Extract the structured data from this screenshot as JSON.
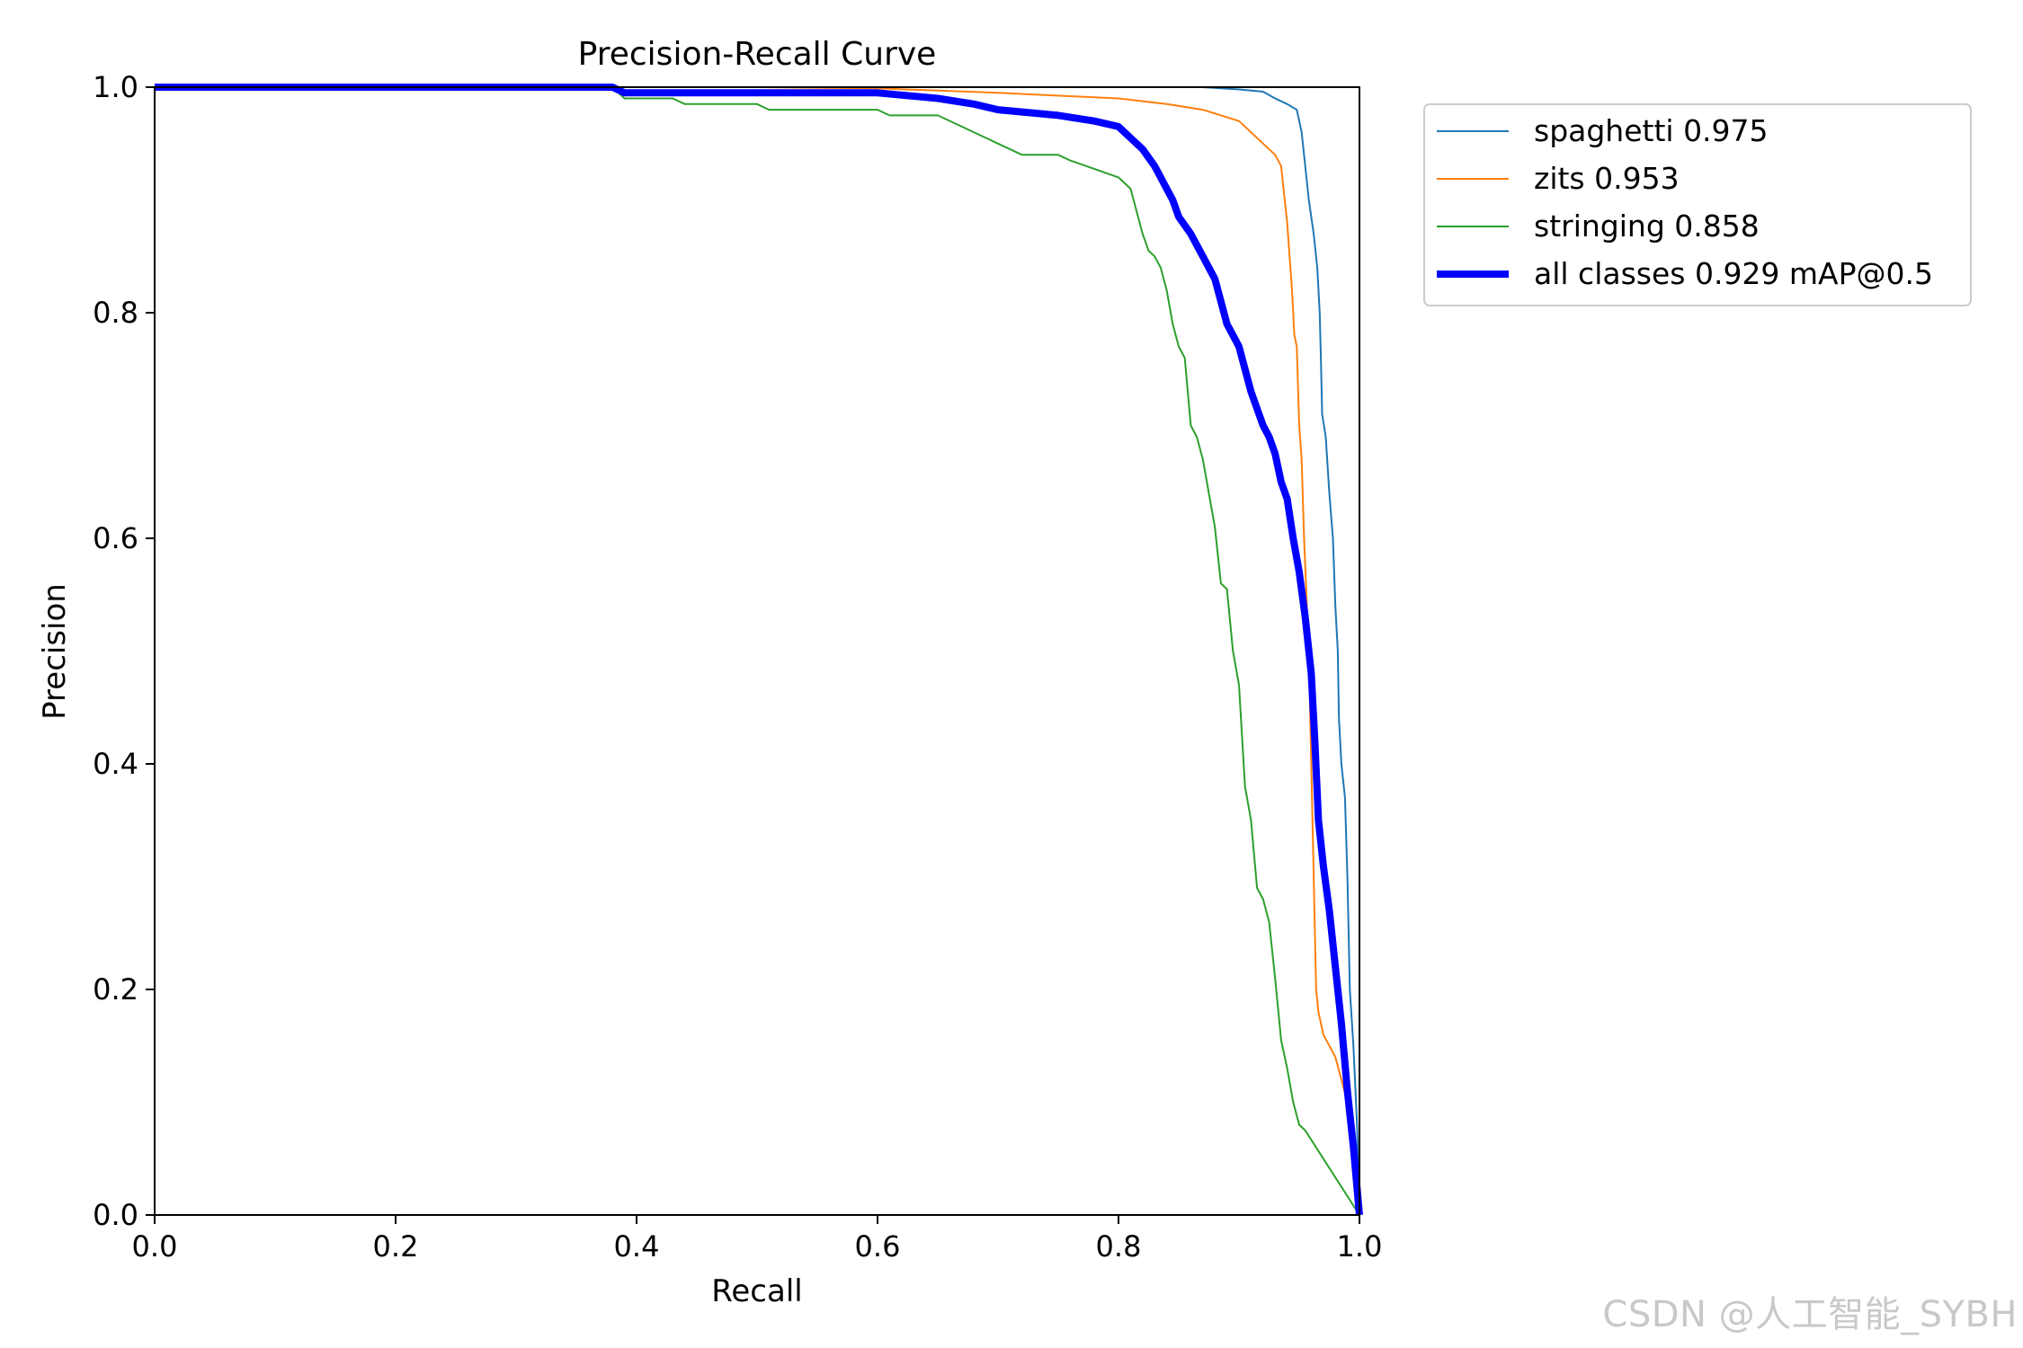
{
  "chart_data": {
    "type": "line",
    "title": "Precision-Recall Curve",
    "xlabel": "Recall",
    "ylabel": "Precision",
    "xlim": [
      0,
      1
    ],
    "ylim": [
      0,
      1
    ],
    "xticks": [
      "0.0",
      "0.2",
      "0.4",
      "0.6",
      "0.8",
      "1.0"
    ],
    "yticks": [
      "0.0",
      "0.2",
      "0.4",
      "0.6",
      "0.8",
      "1.0"
    ],
    "grid": false,
    "legend_position": "outside-top-right",
    "series": [
      {
        "name": "spaghetti 0.975",
        "color": "#1f77b4",
        "points": [
          [
            0,
            1
          ],
          [
            0.6,
            1
          ],
          [
            0.87,
            1
          ],
          [
            0.9,
            0.998
          ],
          [
            0.92,
            0.996
          ],
          [
            0.93,
            0.99
          ],
          [
            0.94,
            0.985
          ],
          [
            0.948,
            0.98
          ],
          [
            0.952,
            0.96
          ],
          [
            0.955,
            0.93
          ],
          [
            0.958,
            0.9
          ],
          [
            0.962,
            0.87
          ],
          [
            0.965,
            0.84
          ],
          [
            0.967,
            0.8
          ],
          [
            0.968,
            0.76
          ],
          [
            0.969,
            0.71
          ],
          [
            0.972,
            0.69
          ],
          [
            0.975,
            0.64
          ],
          [
            0.978,
            0.6
          ],
          [
            0.98,
            0.54
          ],
          [
            0.982,
            0.5
          ],
          [
            0.983,
            0.44
          ],
          [
            0.985,
            0.4
          ],
          [
            0.988,
            0.37
          ],
          [
            0.99,
            0.3
          ],
          [
            0.992,
            0.2
          ],
          [
            0.995,
            0.15
          ],
          [
            0.998,
            0.08
          ],
          [
            1,
            0
          ]
        ]
      },
      {
        "name": "zits 0.953",
        "color": "#ff7f0e",
        "points": [
          [
            0,
            1
          ],
          [
            0.5,
            1
          ],
          [
            0.6,
            0.999
          ],
          [
            0.7,
            0.995
          ],
          [
            0.8,
            0.99
          ],
          [
            0.84,
            0.985
          ],
          [
            0.87,
            0.98
          ],
          [
            0.9,
            0.97
          ],
          [
            0.91,
            0.96
          ],
          [
            0.92,
            0.95
          ],
          [
            0.93,
            0.94
          ],
          [
            0.935,
            0.93
          ],
          [
            0.938,
            0.9
          ],
          [
            0.94,
            0.88
          ],
          [
            0.942,
            0.85
          ],
          [
            0.944,
            0.82
          ],
          [
            0.946,
            0.78
          ],
          [
            0.948,
            0.77
          ],
          [
            0.95,
            0.7
          ],
          [
            0.952,
            0.67
          ],
          [
            0.954,
            0.6
          ],
          [
            0.956,
            0.55
          ],
          [
            0.958,
            0.5
          ],
          [
            0.96,
            0.4
          ],
          [
            0.962,
            0.3
          ],
          [
            0.964,
            0.2
          ],
          [
            0.966,
            0.18
          ],
          [
            0.97,
            0.16
          ],
          [
            0.98,
            0.14
          ],
          [
            0.99,
            0.1
          ],
          [
            1,
            0
          ]
        ]
      },
      {
        "name": "stringing 0.858",
        "color": "#2ca02c",
        "points": [
          [
            0,
            1
          ],
          [
            0.38,
            1
          ],
          [
            0.39,
            0.99
          ],
          [
            0.43,
            0.99
          ],
          [
            0.44,
            0.985
          ],
          [
            0.5,
            0.985
          ],
          [
            0.51,
            0.98
          ],
          [
            0.6,
            0.98
          ],
          [
            0.61,
            0.975
          ],
          [
            0.65,
            0.975
          ],
          [
            0.67,
            0.965
          ],
          [
            0.69,
            0.955
          ],
          [
            0.7,
            0.95
          ],
          [
            0.72,
            0.94
          ],
          [
            0.75,
            0.94
          ],
          [
            0.76,
            0.935
          ],
          [
            0.8,
            0.92
          ],
          [
            0.81,
            0.91
          ],
          [
            0.815,
            0.89
          ],
          [
            0.82,
            0.87
          ],
          [
            0.825,
            0.855
          ],
          [
            0.83,
            0.85
          ],
          [
            0.835,
            0.84
          ],
          [
            0.84,
            0.82
          ],
          [
            0.845,
            0.79
          ],
          [
            0.85,
            0.77
          ],
          [
            0.855,
            0.76
          ],
          [
            0.86,
            0.7
          ],
          [
            0.865,
            0.69
          ],
          [
            0.87,
            0.67
          ],
          [
            0.875,
            0.64
          ],
          [
            0.88,
            0.61
          ],
          [
            0.885,
            0.56
          ],
          [
            0.89,
            0.555
          ],
          [
            0.895,
            0.5
          ],
          [
            0.9,
            0.47
          ],
          [
            0.905,
            0.38
          ],
          [
            0.91,
            0.35
          ],
          [
            0.915,
            0.29
          ],
          [
            0.92,
            0.28
          ],
          [
            0.925,
            0.26
          ],
          [
            0.93,
            0.21
          ],
          [
            0.935,
            0.155
          ],
          [
            0.94,
            0.13
          ],
          [
            0.945,
            0.1
          ],
          [
            0.95,
            0.08
          ],
          [
            0.955,
            0.075
          ],
          [
            1,
            0
          ]
        ]
      },
      {
        "name": "all classes 0.929 mAP@0.5",
        "color": "#0000ff",
        "bold": true,
        "points": [
          [
            0,
            1
          ],
          [
            0.38,
            1
          ],
          [
            0.39,
            0.995
          ],
          [
            0.6,
            0.995
          ],
          [
            0.65,
            0.99
          ],
          [
            0.68,
            0.985
          ],
          [
            0.7,
            0.98
          ],
          [
            0.75,
            0.975
          ],
          [
            0.78,
            0.97
          ],
          [
            0.8,
            0.965
          ],
          [
            0.81,
            0.955
          ],
          [
            0.82,
            0.945
          ],
          [
            0.83,
            0.93
          ],
          [
            0.84,
            0.91
          ],
          [
            0.845,
            0.9
          ],
          [
            0.85,
            0.885
          ],
          [
            0.86,
            0.87
          ],
          [
            0.87,
            0.85
          ],
          [
            0.875,
            0.84
          ],
          [
            0.88,
            0.83
          ],
          [
            0.885,
            0.81
          ],
          [
            0.89,
            0.79
          ],
          [
            0.9,
            0.77
          ],
          [
            0.905,
            0.75
          ],
          [
            0.91,
            0.73
          ],
          [
            0.915,
            0.715
          ],
          [
            0.92,
            0.7
          ],
          [
            0.925,
            0.69
          ],
          [
            0.93,
            0.675
          ],
          [
            0.935,
            0.65
          ],
          [
            0.94,
            0.635
          ],
          [
            0.945,
            0.6
          ],
          [
            0.95,
            0.57
          ],
          [
            0.955,
            0.53
          ],
          [
            0.96,
            0.48
          ],
          [
            0.963,
            0.42
          ],
          [
            0.966,
            0.35
          ],
          [
            0.97,
            0.31
          ],
          [
            0.975,
            0.27
          ],
          [
            0.98,
            0.22
          ],
          [
            0.985,
            0.17
          ],
          [
            0.99,
            0.11
          ],
          [
            0.995,
            0.06
          ],
          [
            1,
            0
          ]
        ]
      }
    ]
  },
  "watermark": "CSDN @人工智能_SYBH"
}
